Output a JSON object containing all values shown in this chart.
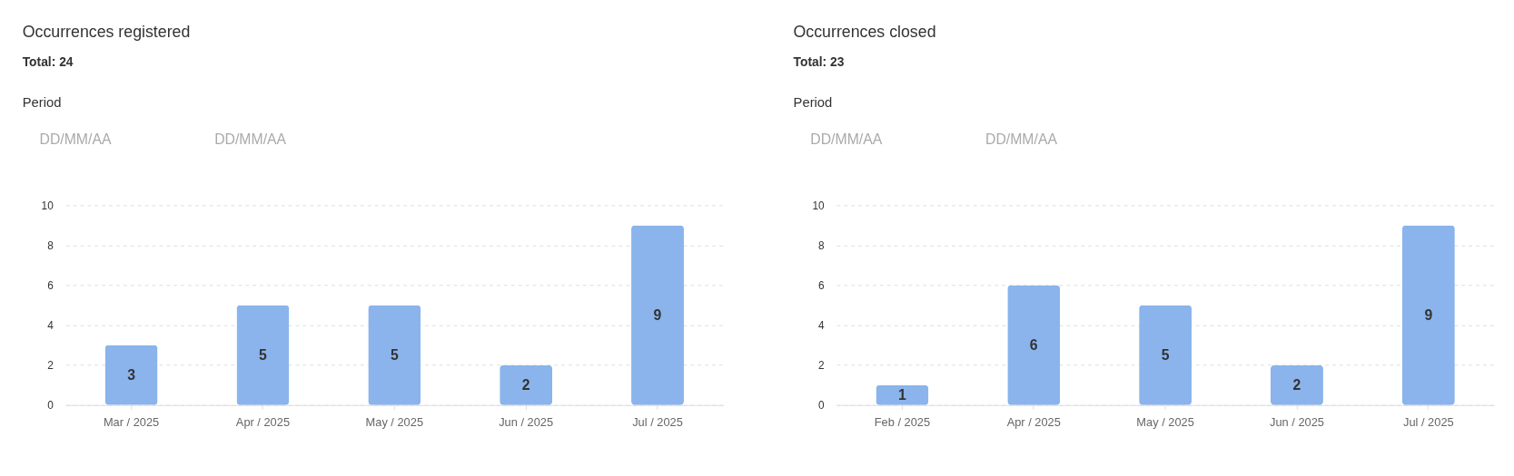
{
  "chart_data": [
    {
      "type": "bar",
      "title": "Occurrences registered",
      "subtitle": "Total: 24",
      "annotations": [
        "Period",
        "DD/MM/AA",
        "DD/MM/AA"
      ],
      "categories": [
        "Mar / 2025",
        "Apr / 2025",
        "May / 2025",
        "Jun / 2025",
        "Jul / 2025"
      ],
      "values": [
        3,
        5,
        5,
        2,
        9
      ],
      "color": "#8ab4eb",
      "ylim": [
        0,
        10
      ],
      "yticks": [
        0,
        2,
        4,
        6,
        8,
        10
      ],
      "grid": "y",
      "data_labels": true
    },
    {
      "type": "bar",
      "title": "Occurrences closed",
      "subtitle": "Total: 23",
      "annotations": [
        "Period",
        "DD/MM/AA",
        "DD/MM/AA"
      ],
      "categories": [
        "Feb / 2025",
        "Apr / 2025",
        "May / 2025",
        "Jun / 2025",
        "Jul / 2025"
      ],
      "values": [
        1,
        6,
        5,
        2,
        9
      ],
      "color": "#8ab4eb",
      "ylim": [
        0,
        10
      ],
      "yticks": [
        0,
        2,
        4,
        6,
        8,
        10
      ],
      "grid": "y",
      "data_labels": true
    }
  ]
}
